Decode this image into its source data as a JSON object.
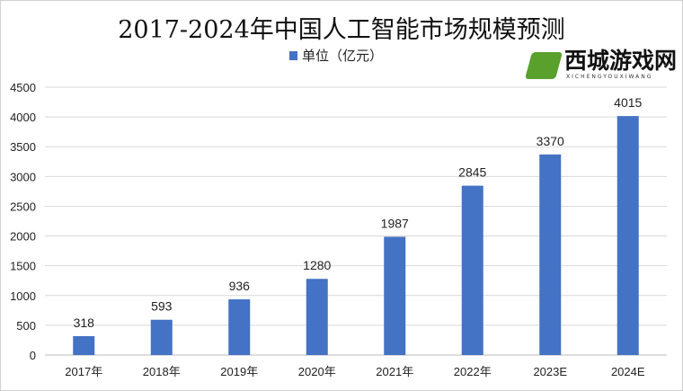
{
  "chart_data": {
    "type": "bar",
    "title": "2017-2024年中国人工智能市场规模预测",
    "legend": {
      "entries": [
        "单位（亿元）"
      ],
      "position": "top"
    },
    "categories": [
      "2017年",
      "2018年",
      "2019年",
      "2020年",
      "2021年",
      "2022年",
      "2023E",
      "2024E"
    ],
    "series": [
      {
        "name": "单位（亿元）",
        "values": [
          318,
          593,
          936,
          1280,
          1987,
          2845,
          3370,
          4015
        ],
        "color": "#4472c4"
      }
    ],
    "ylim": [
      0,
      4500
    ],
    "yticks": [
      0,
      500,
      1000,
      1500,
      2000,
      2500,
      3000,
      3500,
      4000,
      4500
    ],
    "grid": true,
    "data_labels": true
  },
  "watermark": {
    "logo_text": "西城游戏网",
    "logo_subtext": "XICHENGYOUXIWANG"
  }
}
